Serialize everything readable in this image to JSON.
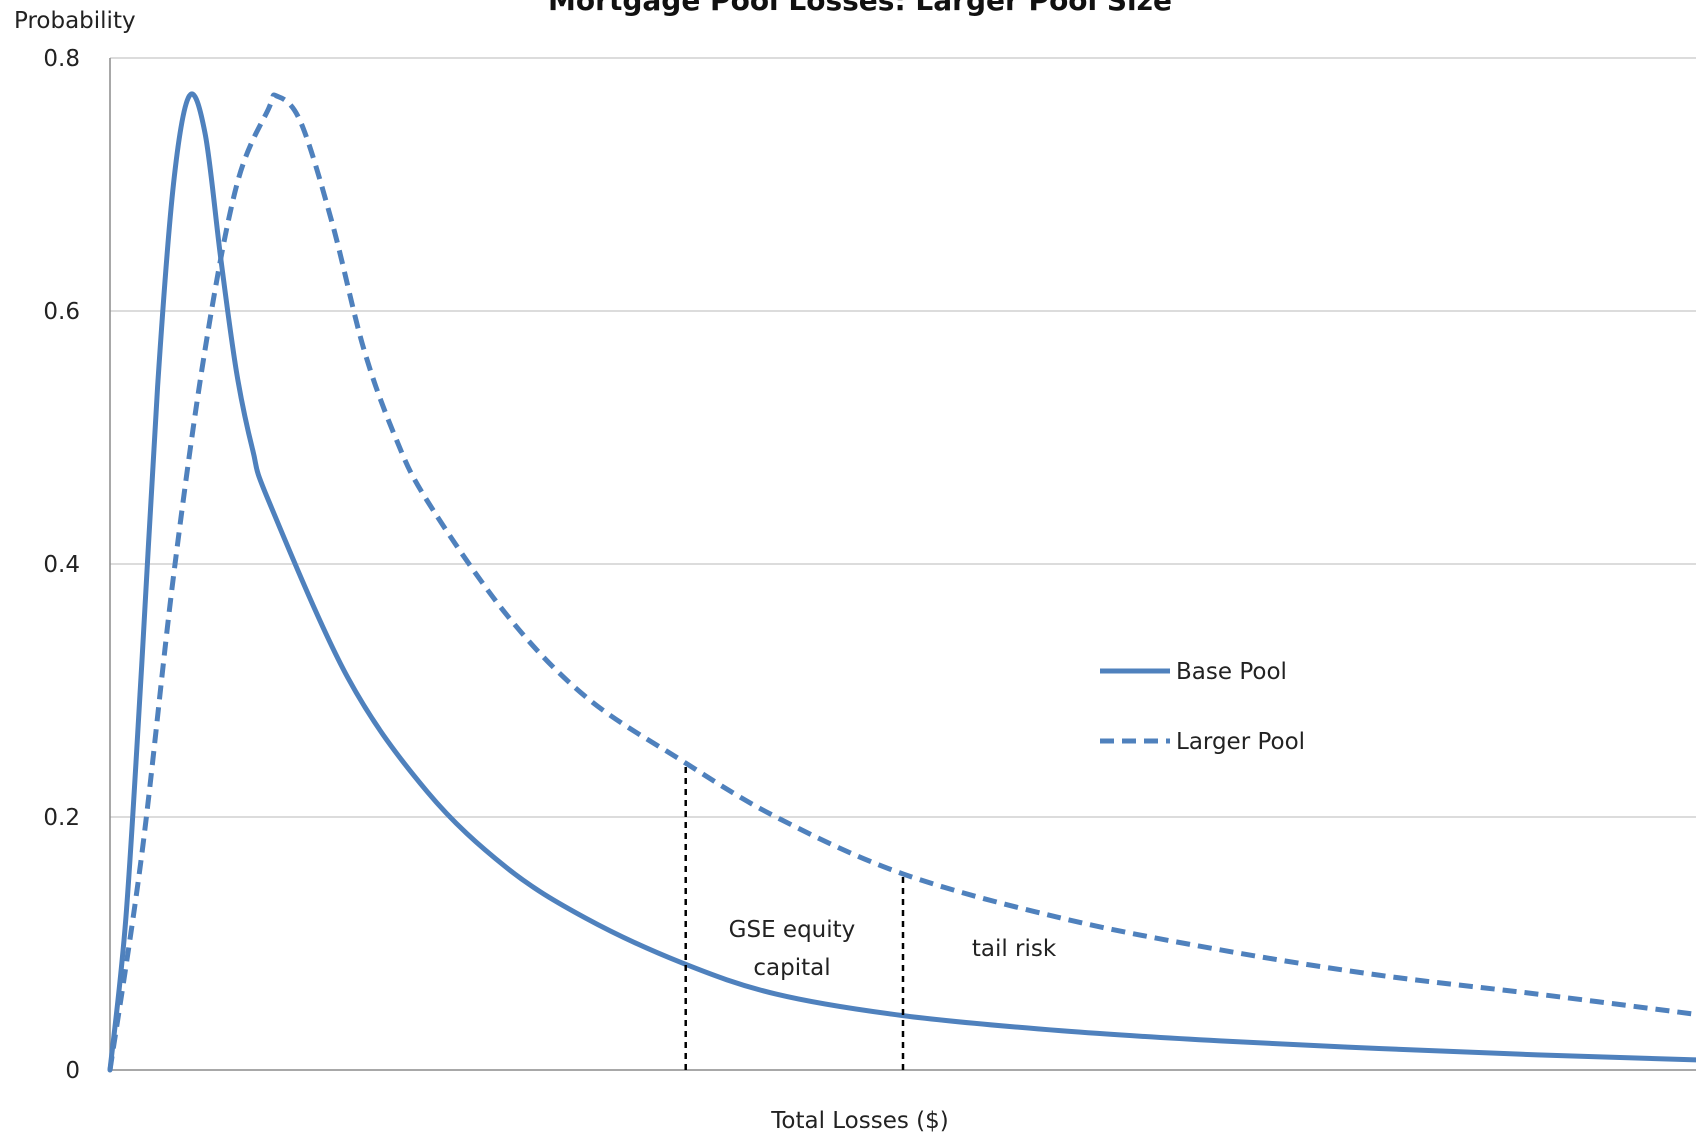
{
  "chart_data": {
    "type": "line",
    "title": "Mortgage Pool Losses: Larger Pool Size",
    "xlabel": "Total Losses ($)",
    "ylabel": "Probability",
    "xlim": [
      0,
      10
    ],
    "ylim": [
      0,
      0.8
    ],
    "y_ticks": [
      {
        "value": 0,
        "label": "0"
      },
      {
        "value": 0.2,
        "label": "0.2"
      },
      {
        "value": 0.4,
        "label": "0.4"
      },
      {
        "value": 0.6,
        "label": "0.6"
      },
      {
        "value": 0.8,
        "label": "0.8"
      }
    ],
    "grid": true,
    "legend_position": "right",
    "series": [
      {
        "name": "Base Pool",
        "style": "solid",
        "color": "#4f81bd",
        "points": [
          [
            0,
            0
          ],
          [
            0.1,
            0.12
          ],
          [
            0.2,
            0.32
          ],
          [
            0.3,
            0.54
          ],
          [
            0.4,
            0.7
          ],
          [
            0.5,
            0.77
          ],
          [
            0.6,
            0.74
          ],
          [
            0.7,
            0.64
          ],
          [
            0.8,
            0.55
          ],
          [
            0.9,
            0.49
          ],
          [
            1.0,
            0.45
          ],
          [
            1.5,
            0.31
          ],
          [
            2.0,
            0.22
          ],
          [
            2.5,
            0.16
          ],
          [
            3.0,
            0.12
          ],
          [
            3.6,
            0.085
          ],
          [
            4.2,
            0.06
          ],
          [
            5.0,
            0.043
          ],
          [
            6.0,
            0.031
          ],
          [
            7.0,
            0.023
          ],
          [
            8.0,
            0.017
          ],
          [
            9.0,
            0.012
          ],
          [
            10.0,
            0.008
          ]
        ]
      },
      {
        "name": "Larger Pool",
        "style": "dashed",
        "color": "#4f81bd",
        "points": [
          [
            0,
            0
          ],
          [
            0.2,
            0.17
          ],
          [
            0.4,
            0.39
          ],
          [
            0.6,
            0.57
          ],
          [
            0.8,
            0.7
          ],
          [
            1.0,
            0.76
          ],
          [
            1.05,
            0.77
          ],
          [
            1.2,
            0.75
          ],
          [
            1.4,
            0.67
          ],
          [
            1.6,
            0.57
          ],
          [
            1.8,
            0.5
          ],
          [
            2.0,
            0.45
          ],
          [
            2.5,
            0.36
          ],
          [
            3.0,
            0.295
          ],
          [
            3.6,
            0.245
          ],
          [
            4.2,
            0.2
          ],
          [
            5.0,
            0.155
          ],
          [
            6.0,
            0.12
          ],
          [
            7.0,
            0.095
          ],
          [
            8.0,
            0.075
          ],
          [
            9.0,
            0.06
          ],
          [
            10.0,
            0.044
          ]
        ]
      }
    ],
    "markers": [
      {
        "x": 3.63,
        "style": "dashed-vertical",
        "color": "#000000"
      },
      {
        "x": 5.0,
        "style": "dashed-vertical",
        "color": "#000000"
      }
    ],
    "annotations": [
      {
        "lines": [
          "GSE equity",
          "capital"
        ],
        "x": 4.3,
        "y": 0.105
      },
      {
        "lines": [
          "tail risk"
        ],
        "x": 5.7,
        "y": 0.09
      }
    ]
  }
}
